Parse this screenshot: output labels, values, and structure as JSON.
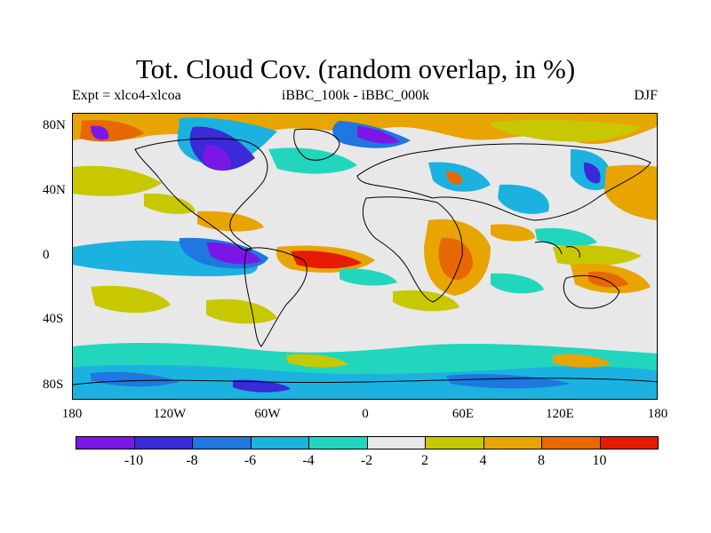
{
  "plot": {
    "title": "Tot. Cloud Cov. (random overlap, in %)",
    "subtitle_left": "Expt = xlco4-xlcoa",
    "subtitle_center": "iBBC_100k - iBBC_000k",
    "subtitle_right": "DJF"
  },
  "axes": {
    "y_labels": [
      "80N",
      "40N",
      "0",
      "40S",
      "80S"
    ],
    "x_labels": [
      "180",
      "120W",
      "60W",
      "0",
      "60E",
      "120E",
      "180"
    ]
  },
  "colorbar": {
    "colors": [
      "#7b17e6",
      "#3a2ad8",
      "#1f77e0",
      "#1bb2e0",
      "#22d6bd",
      "#e8e8e8",
      "#c8c800",
      "#e8a400",
      "#e86800",
      "#e61a00"
    ],
    "labels": [
      "-10",
      "-8",
      "-6",
      "-4",
      "-2",
      "2",
      "4",
      "8",
      "10"
    ]
  },
  "colors": {
    "background": "#e8e8e8",
    "coastline": "#000000"
  }
}
